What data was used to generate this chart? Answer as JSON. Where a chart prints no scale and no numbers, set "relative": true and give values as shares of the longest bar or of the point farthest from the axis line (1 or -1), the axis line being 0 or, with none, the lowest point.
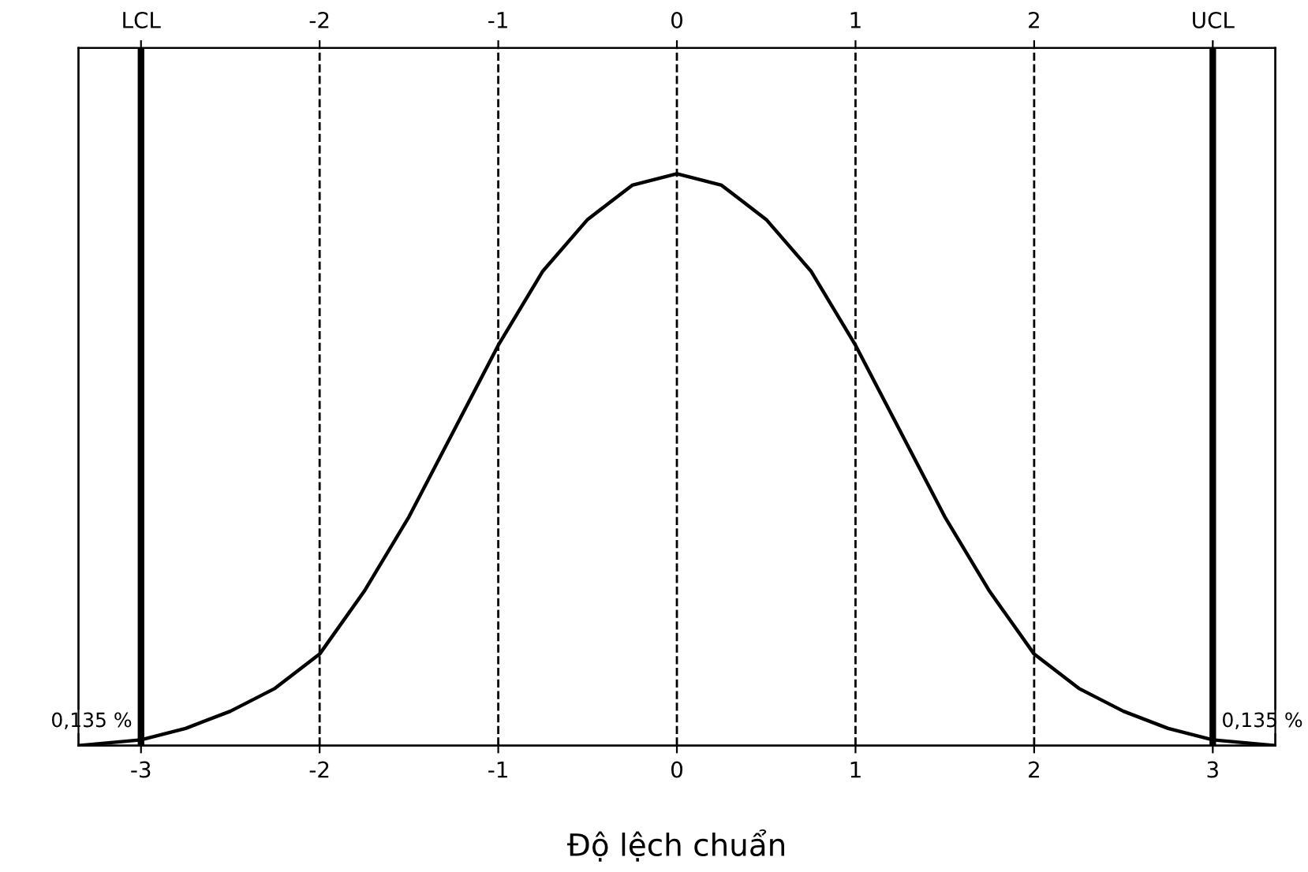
{
  "chart_data": {
    "type": "line",
    "relative": true,
    "xlabel": "Độ lệch chuẩn",
    "x": [
      -3.35,
      -3,
      -2.75,
      -2.5,
      -2.25,
      -2,
      -1.75,
      -1.5,
      -1.25,
      -1,
      -0.75,
      -0.5,
      -0.25,
      0,
      0.25,
      0.5,
      0.75,
      1,
      1.25,
      1.5,
      1.75,
      2,
      2.25,
      2.5,
      2.75,
      3,
      3.35
    ],
    "series": [
      {
        "color": "#000000",
        "values": [
          0.0,
          0.01,
          0.03,
          0.06,
          0.1,
          0.16,
          0.27,
          0.4,
          0.55,
          0.7,
          0.83,
          0.92,
          0.98,
          1,
          0.98,
          0.92,
          0.83,
          0.7,
          0.55,
          0.4,
          0.27,
          0.16,
          0.1,
          0.06,
          0.03,
          0.01,
          0.0
        ]
      }
    ],
    "xlim": [
      -3.35,
      3.35
    ],
    "xticks": [
      -3,
      -2,
      -1,
      0,
      1,
      2,
      3
    ],
    "x2lim": [
      -3.35,
      3.35
    ],
    "x2ticks": [
      {
        "value": -3,
        "label": "LCL"
      },
      -2,
      -1,
      0,
      1,
      2,
      {
        "value": 3,
        "label": "UCL"
      }
    ],
    "ref_lines": [
      {
        "axis": "x",
        "value": -3,
        "color": "#000000",
        "line_style": "solid"
      },
      {
        "axis": "x",
        "value": -2,
        "color": "#000000",
        "line_style": "dashed"
      },
      {
        "axis": "x",
        "value": -1,
        "color": "#000000",
        "line_style": "dashed"
      },
      {
        "axis": "x",
        "value": 0,
        "color": "#000000",
        "line_style": "dashed"
      },
      {
        "axis": "x",
        "value": 1,
        "color": "#000000",
        "line_style": "dashed"
      },
      {
        "axis": "x",
        "value": 2,
        "color": "#000000",
        "line_style": "dashed"
      },
      {
        "axis": "x",
        "value": 3,
        "color": "#000000",
        "line_style": "solid"
      }
    ],
    "annotations": [
      {
        "text": "0,135 %",
        "x": -3,
        "y": 0.01
      },
      {
        "text": "0,135 %",
        "x": 3,
        "y": 0.01
      }
    ],
    "grid": false,
    "legend": false,
    "marker": "none",
    "line_style": "solid"
  }
}
